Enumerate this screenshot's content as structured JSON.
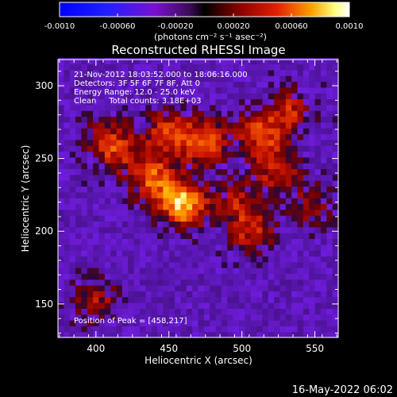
{
  "chart_data": {
    "type": "heatmap",
    "title": "Reconstructed RHESSI Image",
    "colorbar": {
      "min": -0.001,
      "max": 0.001,
      "tick_labels": [
        "-0.0010",
        "-0.00060",
        "-0.00020",
        "0.00020",
        "0.00060",
        "0.0010"
      ],
      "tick_values": [
        -0.001,
        -0.0006,
        -0.0002,
        0.0002,
        0.0006,
        0.001
      ],
      "units": "(photons cm⁻² s⁻¹ asec⁻²)"
    },
    "xlabel": "Heliocentric X (arcsec)",
    "ylabel": "Heliocentric Y (arcsec)",
    "xlim": [
      374,
      566
    ],
    "ylim": [
      127,
      318
    ],
    "x_ticks": [
      400,
      450,
      500,
      550
    ],
    "y_ticks": [
      150,
      200,
      250,
      300
    ],
    "annotations": [
      "21-Nov-2012 18:03:52.000 to 18:06:16.000",
      "Detectors: 3F 5F 6F 7F 8F, Att 0",
      "Energy Range: 12.0 - 25.0 keV",
      "Clean     Total counts: 3.18E+03"
    ],
    "peak_label": "Position of Peak = [458,217]",
    "peak": [
      458,
      217
    ],
    "sources": [
      {
        "x": 458,
        "y": 217,
        "amp": 1.0
      },
      {
        "x": 438,
        "y": 234,
        "amp": 0.7
      },
      {
        "x": 472,
        "y": 260,
        "amp": 0.72
      },
      {
        "x": 447,
        "y": 265,
        "amp": 0.62
      },
      {
        "x": 510,
        "y": 265,
        "amp": 0.62
      },
      {
        "x": 523,
        "y": 240,
        "amp": 0.55
      },
      {
        "x": 530,
        "y": 280,
        "amp": 0.5
      },
      {
        "x": 495,
        "y": 218,
        "amp": 0.42
      },
      {
        "x": 505,
        "y": 197,
        "amp": 0.5
      },
      {
        "x": 413,
        "y": 252,
        "amp": 0.42
      },
      {
        "x": 398,
        "y": 150,
        "amp": 0.42
      },
      {
        "x": 405,
        "y": 263,
        "amp": 0.35
      },
      {
        "x": 545,
        "y": 215,
        "amp": 0.32
      }
    ]
  },
  "footer": {
    "timestamp": "16-May-2022 06:02"
  }
}
